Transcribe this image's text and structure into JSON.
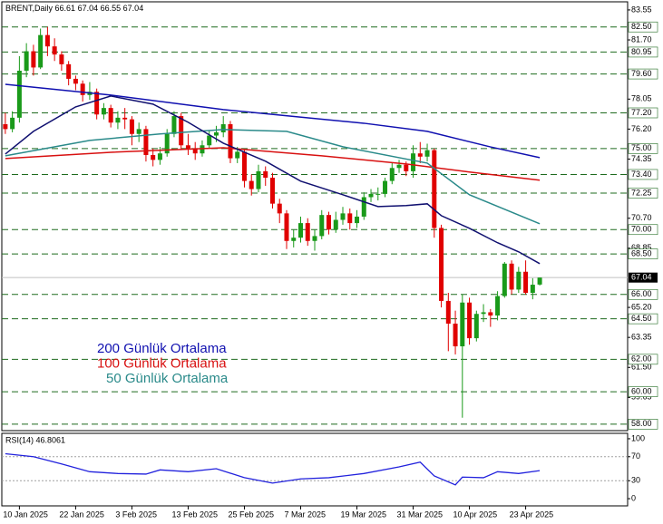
{
  "chart_data": [
    {
      "type": "candlestick",
      "title": "BRENT,Daily",
      "xlim": [
        -0.5,
        88.5
      ],
      "ylim": [
        57.6,
        84.05
      ],
      "up_color": "#1a9a1a",
      "down_color": "#e00000",
      "level_color": "#1f6b1f",
      "yticks": [
        83.55,
        {
          "value": 81.7,
          "label": "81.70"
        },
        78.05,
        {
          "value": 76.2,
          "label": "76.20"
        },
        74.35,
        {
          "value": 70.7,
          "label": "70.70"
        },
        68.85,
        {
          "value": 65.2,
          "label": "65.20"
        },
        63.35,
        {
          "value": 61.5,
          "label": "61.50"
        },
        59.65
      ],
      "levels": [
        {
          "value": 82.5,
          "label": "82.50"
        },
        80.95,
        {
          "value": 79.6,
          "label": "79.60"
        },
        {
          "value": 77.2,
          "label": "77.20"
        },
        {
          "value": 75,
          "label": "75.00"
        },
        {
          "value": 73.4,
          "label": "73.40"
        },
        72.25,
        {
          "value": 70,
          "label": "70.00"
        },
        {
          "value": 68.5,
          "label": "68.50"
        },
        {
          "value": 66,
          "label": "66.00"
        },
        {
          "value": 64.5,
          "label": "64.50"
        },
        {
          "value": 62,
          "label": "62.00"
        },
        {
          "value": 60,
          "label": "60.00"
        },
        {
          "value": 58,
          "label": "58.00"
        }
      ],
      "open": [
        76.5,
        76.2,
        76.9,
        79.8,
        81.0,
        80.0,
        82.0,
        81.3,
        80.8,
        80.2,
        79.3,
        79.0,
        78.3,
        78.5,
        77.1,
        77.5,
        76.6,
        76.9,
        76.8,
        75.9,
        76.2,
        74.6,
        74.3,
        74.7,
        75.9,
        77.0,
        75.2,
        75.0,
        74.7,
        75.2,
        75.8,
        76.0,
        76.5,
        74.4,
        74.8,
        73.0,
        72.5,
        73.6,
        73.2,
        71.6,
        71.0,
        69.3,
        69.5,
        70.4,
        69.3,
        69.6,
        70.9,
        70.0,
        70.6,
        71.0,
        70.4,
        70.8,
        72.0,
        72.2,
        72.2,
        73.0,
        73.8,
        74.0,
        73.6,
        74.7,
        74.5,
        74.9,
        70.1,
        65.6,
        64.2,
        62.8,
        65.5,
        63.3,
        64.8,
        64.9,
        64.7,
        65.9,
        67.9,
        66.3,
        67.4,
        66.1,
        66.61
      ],
      "high": [
        77.2,
        77.3,
        80.7,
        81.5,
        81.4,
        82.4,
        82.5,
        81.8,
        81.0,
        80.4,
        79.5,
        79.2,
        79.1,
        78.7,
        77.8,
        77.7,
        77.3,
        77.5,
        77.0,
        76.6,
        76.4,
        75.0,
        75.1,
        76.2,
        77.3,
        77.2,
        75.9,
        75.4,
        75.5,
        76.1,
        76.4,
        77.0,
        76.7,
        75.1,
        74.9,
        73.4,
        74.0,
        73.9,
        73.5,
        71.9,
        71.2,
        70.0,
        70.8,
        70.7,
        70.0,
        71.2,
        71.1,
        71.1,
        71.4,
        71.3,
        71.2,
        72.3,
        72.5,
        72.6,
        73.2,
        74.1,
        74.3,
        74.2,
        75.2,
        75.4,
        75.3,
        75.0,
        70.3,
        66.1,
        65.0,
        66.0,
        65.8,
        65.0,
        65.4,
        65.1,
        66.2,
        68.0,
        68.1,
        67.7,
        68.1,
        67.0,
        67.04
      ],
      "low": [
        75.9,
        76.0,
        76.6,
        79.4,
        79.5,
        79.9,
        80.7,
        80.4,
        79.8,
        78.9,
        78.6,
        77.9,
        78.0,
        76.8,
        76.8,
        76.3,
        76.2,
        76.2,
        75.2,
        75.4,
        74.2,
        73.9,
        74.0,
        74.5,
        75.7,
        74.9,
        74.6,
        74.3,
        74.5,
        75.0,
        75.4,
        75.7,
        74.1,
        74.1,
        72.6,
        72.1,
        72.3,
        72.7,
        71.3,
        70.4,
        68.8,
        68.9,
        69.2,
        69.0,
        68.7,
        69.4,
        69.7,
        69.8,
        70.3,
        70.0,
        70.1,
        70.6,
        71.7,
        71.8,
        72.0,
        72.8,
        73.5,
        73.3,
        73.2,
        74.1,
        74.2,
        69.5,
        65.2,
        62.5,
        62.3,
        58.4,
        62.9,
        63.1,
        64.3,
        64.0,
        64.4,
        65.8,
        66.0,
        66.1,
        66.0,
        65.7,
        66.55
      ],
      "close": [
        76.2,
        76.9,
        79.8,
        81.0,
        80.0,
        82.0,
        81.3,
        80.8,
        80.2,
        79.3,
        79.0,
        78.3,
        78.5,
        77.1,
        77.5,
        76.6,
        76.9,
        76.8,
        75.9,
        76.2,
        74.6,
        74.3,
        74.7,
        75.9,
        77.0,
        75.2,
        75.0,
        74.7,
        75.2,
        75.8,
        76.0,
        76.5,
        74.4,
        74.8,
        73.0,
        72.5,
        73.6,
        73.2,
        71.6,
        71.0,
        69.3,
        69.5,
        70.4,
        69.3,
        69.6,
        70.9,
        70.0,
        70.6,
        71.0,
        70.4,
        70.8,
        72.0,
        72.2,
        72.2,
        73.0,
        73.8,
        74.0,
        73.6,
        74.7,
        74.5,
        74.9,
        70.1,
        65.6,
        64.2,
        62.8,
        65.5,
        63.3,
        64.8,
        64.9,
        64.7,
        65.9,
        67.9,
        66.3,
        67.4,
        66.1,
        66.6,
        67.04
      ],
      "series": [
        {
          "name": "200 Günlük Ortalama",
          "color": "#1010b0",
          "x": [
            0,
            15,
            31,
            51,
            60,
            69,
            76
          ],
          "values": [
            78.96,
            78.3,
            77.4,
            76.56,
            76.06,
            75.1,
            74.44
          ]
        },
        {
          "name": "100 Günlük Ortalama",
          "color": "#d81010",
          "x": [
            0,
            15,
            31,
            45,
            57,
            66,
            76
          ],
          "values": [
            74.38,
            74.77,
            75.05,
            74.55,
            74.05,
            73.55,
            73.05
          ]
        },
        {
          "name": "50 Günlük Ortalama",
          "color": "#2a8a8a",
          "x": [
            0,
            12,
            22,
            31,
            40,
            48,
            60,
            66,
            76
          ],
          "values": [
            74.55,
            75.5,
            75.9,
            76.17,
            76.06,
            75.11,
            74.1,
            72.15,
            70.36
          ]
        },
        {
          "color": "#101070",
          "x": [
            0,
            4,
            10,
            15,
            21,
            26,
            31,
            37,
            42,
            48,
            53,
            57,
            60,
            62,
            66,
            70,
            73,
            76
          ],
          "values": [
            74.66,
            76.06,
            77.57,
            78.24,
            77.74,
            76.62,
            75.33,
            74.22,
            72.99,
            72.15,
            71.42,
            71.48,
            71.59,
            70.86,
            70.08,
            69.19,
            68.63,
            67.9
          ]
        }
      ]
    },
    {
      "type": "line",
      "title": "RSI(14) 46.8061",
      "xlim": [
        -0.5,
        88.5
      ],
      "ylim": [
        -12,
        109
      ],
      "yticks": [
        100,
        70,
        30,
        0
      ],
      "levels": [
        70,
        30
      ],
      "xticks": [
        {
          "value": 2,
          "label": "10 Jan 2025"
        },
        {
          "value": 10,
          "label": "22 Jan 2025"
        },
        {
          "value": 18,
          "label": "3 Feb 2025"
        },
        {
          "value": 26,
          "label": "13 Feb 2025"
        },
        {
          "value": 34,
          "label": "25 Feb 2025"
        },
        {
          "value": 42,
          "label": "7 Mar 2025"
        },
        {
          "value": 50,
          "label": "19 Mar 2025"
        },
        {
          "value": 58,
          "label": "31 Mar 2025"
        },
        {
          "value": 66,
          "label": "10 Apr 2025"
        },
        {
          "value": 74,
          "label": "23 Apr 2025"
        }
      ],
      "series": [
        {
          "color": "#2222dd",
          "x": [
            0,
            4,
            8,
            12,
            16,
            20,
            22,
            26,
            30,
            34,
            38,
            42,
            46,
            51,
            56,
            59,
            61,
            64,
            65,
            68,
            70,
            73,
            76
          ],
          "values": [
            75,
            70,
            58,
            45,
            42,
            41,
            48,
            45,
            50,
            35,
            26,
            33,
            35,
            42,
            53,
            61,
            38,
            23,
            36,
            35,
            45,
            42,
            46.8
          ]
        }
      ]
    }
  ]
}
